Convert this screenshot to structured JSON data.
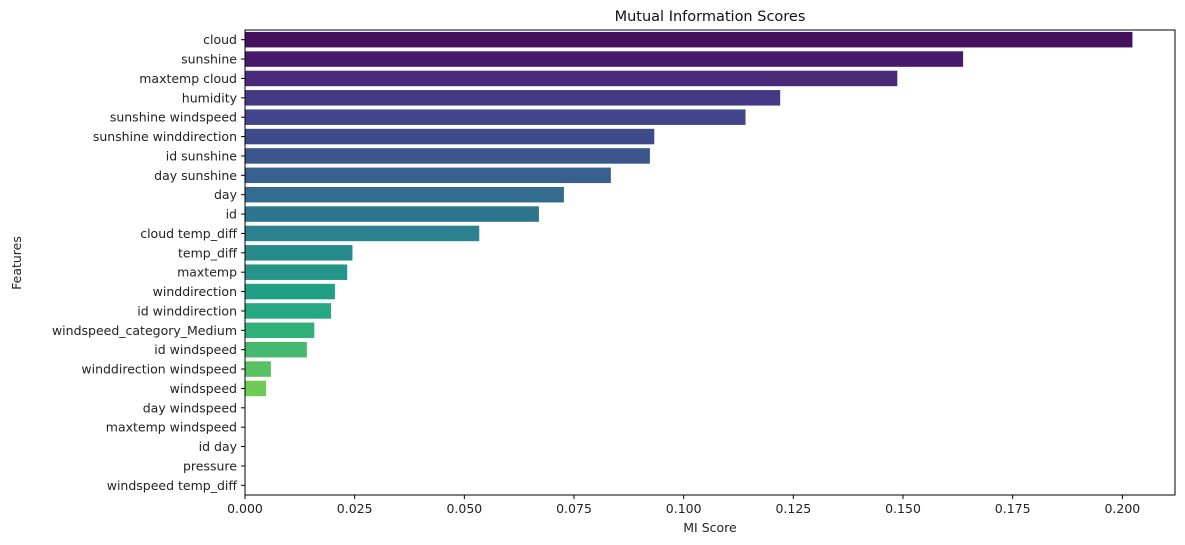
{
  "chart_data": {
    "type": "bar",
    "orientation": "horizontal",
    "title": "Mutual Information Scores",
    "xlabel": "MI Score",
    "ylabel": "Features",
    "xlim": [
      0,
      0.212
    ],
    "xticks": [
      0.0,
      0.025,
      0.05,
      0.075,
      0.1,
      0.125,
      0.15,
      0.175,
      0.2
    ],
    "xtick_labels": [
      "0.000",
      "0.025",
      "0.050",
      "0.075",
      "0.100",
      "0.125",
      "0.150",
      "0.175",
      "0.200"
    ],
    "grid": false,
    "legend": false,
    "colormap": "viridis",
    "categories": [
      "cloud",
      "sunshine",
      "maxtemp cloud",
      "humidity",
      "sunshine windspeed",
      "sunshine winddirection",
      "id sunshine",
      "day sunshine",
      "day",
      "id",
      "cloud temp_diff",
      "temp_diff",
      "maxtemp",
      "winddirection",
      "id winddirection",
      "windspeed_category_Medium",
      "id windspeed",
      "winddirection windspeed",
      "windspeed",
      "day windspeed",
      "maxtemp windspeed",
      "id day",
      "pressure",
      "windspeed temp_diff"
    ],
    "values": [
      0.2023,
      0.1637,
      0.1487,
      0.122,
      0.1141,
      0.0933,
      0.0923,
      0.0834,
      0.0727,
      0.067,
      0.0534,
      0.0245,
      0.0233,
      0.0205,
      0.0196,
      0.0158,
      0.0141,
      0.0059,
      0.0048,
      0.0,
      0.0,
      0.0,
      0.0,
      0.0
    ],
    "colors": [
      "#45115c",
      "#48196b",
      "#482a79",
      "#463983",
      "#43448b",
      "#3e4b8a",
      "#3b568d",
      "#37608e",
      "#336b8e",
      "#2e768e",
      "#2b818d",
      "#278b8c",
      "#25948a",
      "#219f86",
      "#24a782",
      "#30b17b",
      "#45b970",
      "#58c162",
      "#6ecb56",
      "#86d54a",
      "#a1dc3e",
      "#bddf27",
      "#d8e31b",
      "#f1e41a"
    ]
  }
}
